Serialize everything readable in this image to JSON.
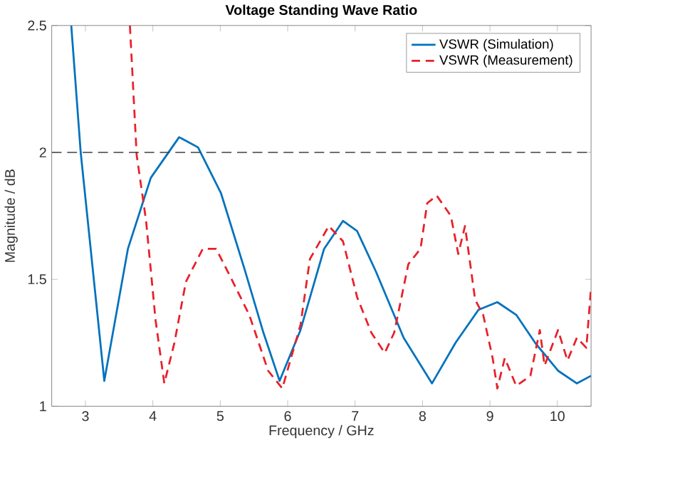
{
  "chart_data": {
    "type": "line",
    "title": "Voltage Standing Wave Ratio",
    "xlabel": "Frequency / GHz",
    "ylabel": "Magnitude / dB",
    "xlim": [
      2.5,
      10.5
    ],
    "ylim": [
      1,
      2.5
    ],
    "xticks": [
      3,
      4,
      5,
      6,
      7,
      8,
      9,
      10
    ],
    "yticks": [
      1,
      1.5,
      2,
      2.5
    ],
    "legend": "top right",
    "grid": false,
    "ref_lines": [
      {
        "axis": "y",
        "value": 2,
        "color": "#404040",
        "line_style": "dashed"
      }
    ],
    "series": [
      {
        "name": "VSWR (Simulation)",
        "color": "#0072bd",
        "line_style": "solid",
        "x": [
          2.79,
          2.93,
          3.28,
          3.63,
          3.97,
          4.39,
          4.67,
          5.01,
          5.36,
          5.64,
          5.88,
          6.19,
          6.54,
          6.82,
          7.03,
          7.31,
          7.72,
          8.14,
          8.49,
          8.83,
          9.11,
          9.39,
          9.67,
          10.01,
          10.29,
          10.5
        ],
        "values": [
          2.5,
          2.0,
          1.1,
          1.62,
          1.9,
          2.06,
          2.02,
          1.84,
          1.54,
          1.29,
          1.1,
          1.3,
          1.62,
          1.73,
          1.69,
          1.53,
          1.27,
          1.09,
          1.25,
          1.38,
          1.41,
          1.36,
          1.25,
          1.14,
          1.09,
          1.12
        ]
      },
      {
        "name": "VSWR (Measurement)",
        "color": "#e8202a",
        "line_style": "dashed",
        "x": [
          3.66,
          3.76,
          3.9,
          4.04,
          4.17,
          4.32,
          4.49,
          4.74,
          4.94,
          5.15,
          5.43,
          5.71,
          5.92,
          6.19,
          6.33,
          6.61,
          6.82,
          7.03,
          7.24,
          7.44,
          7.58,
          7.79,
          7.97,
          8.07,
          8.21,
          8.42,
          8.53,
          8.63,
          8.78,
          8.9,
          9.04,
          9.11,
          9.22,
          9.39,
          9.6,
          9.74,
          9.81,
          10.01,
          10.15,
          10.29,
          10.43,
          10.5
        ],
        "values": [
          2.5,
          1.99,
          1.73,
          1.34,
          1.09,
          1.25,
          1.49,
          1.62,
          1.62,
          1.51,
          1.36,
          1.14,
          1.07,
          1.32,
          1.58,
          1.71,
          1.65,
          1.43,
          1.29,
          1.21,
          1.29,
          1.56,
          1.62,
          1.8,
          1.83,
          1.75,
          1.6,
          1.71,
          1.42,
          1.36,
          1.19,
          1.07,
          1.19,
          1.08,
          1.12,
          1.3,
          1.16,
          1.3,
          1.18,
          1.27,
          1.23,
          1.47
        ]
      }
    ]
  }
}
